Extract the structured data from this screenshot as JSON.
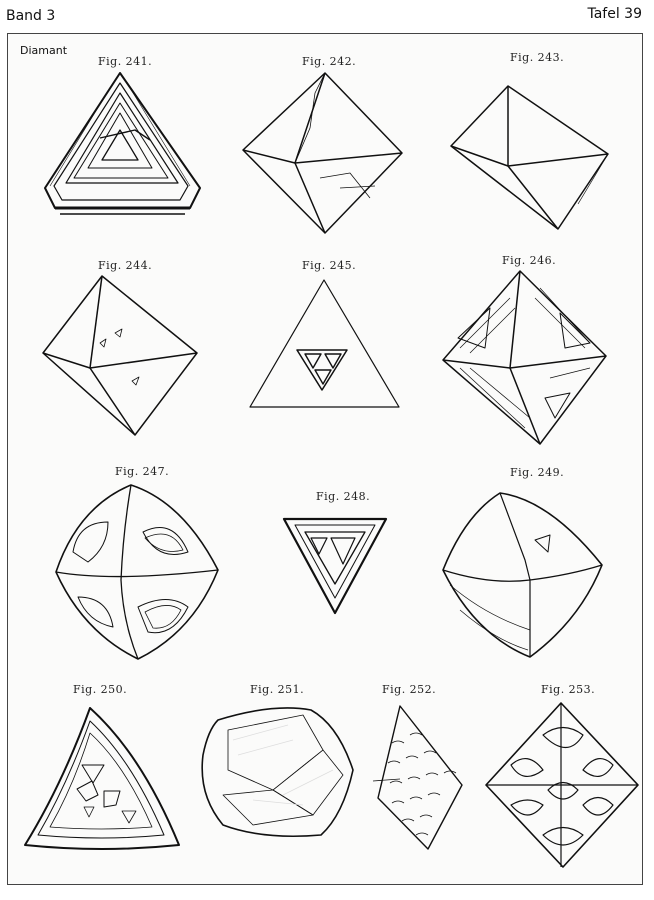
{
  "header": {
    "band": "Band 3",
    "tafel": "Tafel 39"
  },
  "plate": {
    "title": "Diamant"
  },
  "figures": [
    {
      "id": "241",
      "caption": "Fig. 241."
    },
    {
      "id": "242",
      "caption": "Fig. 242."
    },
    {
      "id": "243",
      "caption": "Fig. 243."
    },
    {
      "id": "244",
      "caption": "Fig. 244."
    },
    {
      "id": "245",
      "caption": "Fig. 245."
    },
    {
      "id": "246",
      "caption": "Fig. 246."
    },
    {
      "id": "247",
      "caption": "Fig. 247."
    },
    {
      "id": "248",
      "caption": "Fig. 248."
    },
    {
      "id": "249",
      "caption": "Fig. 249."
    },
    {
      "id": "250",
      "caption": "Fig. 250."
    },
    {
      "id": "251",
      "caption": "Fig. 251."
    },
    {
      "id": "252",
      "caption": "Fig. 252."
    },
    {
      "id": "253",
      "caption": "Fig. 253."
    }
  ]
}
